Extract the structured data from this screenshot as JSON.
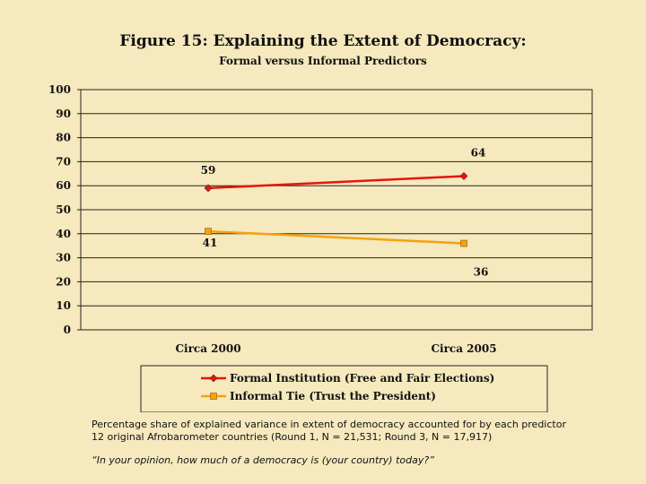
{
  "chart_data": {
    "type": "line",
    "title": "Figure 15:  Explaining the Extent of Democracy:",
    "subtitle": "Formal versus Informal Predictors",
    "categories": [
      "Circa 2000",
      "Circa 2005"
    ],
    "ylim": [
      0,
      100
    ],
    "yticks": [
      0,
      10,
      20,
      30,
      40,
      50,
      60,
      70,
      80,
      90,
      100
    ],
    "grid": "horizontal",
    "legend_position": "bottom",
    "series": [
      {
        "name": "Formal Institution (Free and Fair Elections)",
        "values": [
          59,
          64
        ],
        "color": "#e8140d",
        "marker": "diamond"
      },
      {
        "name": "Informal Tie (Trust the President)",
        "values": [
          41,
          36
        ],
        "color": "#f5a111",
        "marker": "square"
      }
    ]
  },
  "caption": {
    "line1": "Percentage share of explained variance in extent of democracy accounted for by each predictor",
    "line2": "12 original Afrobarometer countries (Round 1, N = 21,531;  Round 3, N = 17,917)",
    "quote": "“In your opinion, how much of a democracy is (your country) today?”"
  }
}
